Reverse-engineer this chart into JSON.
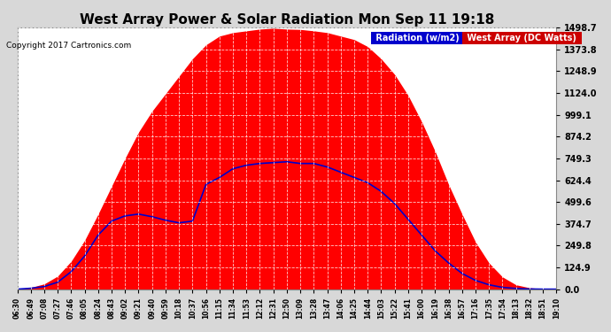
{
  "title": "West Array Power & Solar Radiation Mon Sep 11 19:18",
  "copyright": "Copyright 2017 Cartronics.com",
  "legend_labels": [
    "Radiation (w/m2)",
    "West Array (DC Watts)"
  ],
  "legend_bg_colors": [
    "#0000cc",
    "#cc0000"
  ],
  "legend_text_color": "#ffffff",
  "bg_color": "#d8d8d8",
  "plot_bg_color": "#ffffff",
  "grid_color": "#aaaaaa",
  "title_color": "#000000",
  "tick_color": "#000000",
  "ymin": 0.0,
  "ymax": 1498.7,
  "yticks": [
    0.0,
    124.9,
    249.8,
    374.7,
    499.6,
    624.4,
    749.3,
    874.2,
    999.1,
    1124.0,
    1248.9,
    1373.8,
    1498.7
  ],
  "time_labels": [
    "06:30",
    "06:49",
    "07:08",
    "07:27",
    "07:46",
    "08:05",
    "08:24",
    "08:43",
    "09:02",
    "09:21",
    "09:40",
    "09:59",
    "10:18",
    "10:37",
    "10:56",
    "11:15",
    "11:34",
    "11:53",
    "12:12",
    "12:31",
    "12:50",
    "13:09",
    "13:28",
    "13:47",
    "14:06",
    "14:25",
    "14:44",
    "15:03",
    "15:22",
    "15:41",
    "16:00",
    "16:19",
    "16:38",
    "16:57",
    "17:16",
    "17:35",
    "17:54",
    "18:13",
    "18:32",
    "18:51",
    "19:10"
  ],
  "red_area_values": [
    0,
    10,
    30,
    75,
    160,
    280,
    430,
    590,
    750,
    900,
    1020,
    1120,
    1220,
    1320,
    1400,
    1450,
    1470,
    1480,
    1490,
    1495,
    1490,
    1488,
    1480,
    1470,
    1450,
    1430,
    1390,
    1320,
    1230,
    1110,
    960,
    790,
    600,
    430,
    270,
    150,
    70,
    25,
    8,
    2,
    0
  ],
  "blue_line_values": [
    0,
    5,
    15,
    40,
    100,
    190,
    310,
    390,
    420,
    430,
    415,
    395,
    380,
    390,
    600,
    640,
    690,
    710,
    720,
    725,
    730,
    720,
    720,
    700,
    670,
    640,
    610,
    560,
    490,
    400,
    310,
    220,
    150,
    90,
    50,
    25,
    10,
    4,
    1,
    0,
    0
  ]
}
